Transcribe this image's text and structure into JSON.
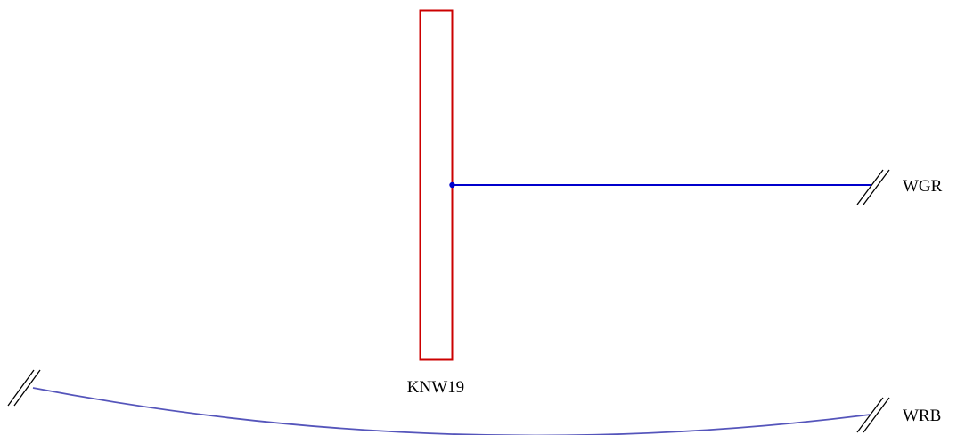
{
  "station": {
    "label": "KNW19",
    "color": "#cc0000"
  },
  "connections": [
    {
      "label": "WGR",
      "color": "#0000cc"
    },
    {
      "label": "WRB",
      "color": "#5555bb"
    }
  ],
  "background": "#ffffff"
}
